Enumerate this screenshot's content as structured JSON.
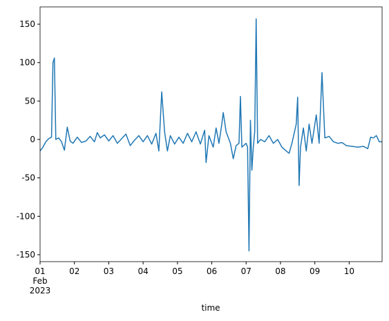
{
  "chart_data": {
    "type": "line",
    "xlabel": "time",
    "x": [
      "2023-02-01T00:00",
      "2023-02-01T02:00",
      "2023-02-01T04:00",
      "2023-02-01T06:00",
      "2023-02-01T08:00",
      "2023-02-01T09:00",
      "2023-02-01T10:00",
      "2023-02-01T11:00",
      "2023-02-01T13:00",
      "2023-02-01T15:00",
      "2023-02-01T17:00",
      "2023-02-01T19:00",
      "2023-02-01T21:00",
      "2023-02-01T23:00",
      "2023-02-02T02:00",
      "2023-02-02T05:00",
      "2023-02-02T08:00",
      "2023-02-02T11:00",
      "2023-02-02T14:00",
      "2023-02-02T16:00",
      "2023-02-02T18:00",
      "2023-02-02T21:00",
      "2023-02-03T00:00",
      "2023-02-03T03:00",
      "2023-02-03T06:00",
      "2023-02-03T09:00",
      "2023-02-03T12:00",
      "2023-02-03T15:00",
      "2023-02-03T18:00",
      "2023-02-03T21:00",
      "2023-02-04T00:00",
      "2023-02-04T03:00",
      "2023-02-04T06:00",
      "2023-02-04T09:00",
      "2023-02-04T11:00",
      "2023-02-04T13:00",
      "2023-02-04T15:00",
      "2023-02-04T17:00",
      "2023-02-04T19:00",
      "2023-02-04T22:00",
      "2023-02-05T01:00",
      "2023-02-05T04:00",
      "2023-02-05T07:00",
      "2023-02-05T10:00",
      "2023-02-05T13:00",
      "2023-02-05T16:00",
      "2023-02-05T19:00",
      "2023-02-05T20:00",
      "2023-02-05T22:00",
      "2023-02-06T01:00",
      "2023-02-06T03:00",
      "2023-02-06T05:00",
      "2023-02-06T07:00",
      "2023-02-06T08:00",
      "2023-02-06T10:00",
      "2023-02-06T13:00",
      "2023-02-06T15:00",
      "2023-02-06T17:00",
      "2023-02-06T19:00",
      "2023-02-06T20:00",
      "2023-02-06T21:00",
      "2023-02-07T00:00",
      "2023-02-07T01:00",
      "2023-02-07T02:00",
      "2023-02-07T03:00",
      "2023-02-07T04:00",
      "2023-02-07T05:00",
      "2023-02-07T06:00",
      "2023-02-07T07:00",
      "2023-02-07T08:00",
      "2023-02-07T10:00",
      "2023-02-07T13:00",
      "2023-02-07T16:00",
      "2023-02-07T19:00",
      "2023-02-07T22:00",
      "2023-02-08T01:00",
      "2023-02-08T04:00",
      "2023-02-08T06:00",
      "2023-02-08T08:00",
      "2023-02-08T11:00",
      "2023-02-08T12:00",
      "2023-02-08T13:00",
      "2023-02-08T14:00",
      "2023-02-08T16:00",
      "2023-02-08T18:00",
      "2023-02-08T20:00",
      "2023-02-08T22:00",
      "2023-02-09T01:00",
      "2023-02-09T03:00",
      "2023-02-09T05:00",
      "2023-02-09T07:00",
      "2023-02-09T10:00",
      "2023-02-09T13:00",
      "2023-02-09T16:00",
      "2023-02-09T19:00",
      "2023-02-09T22:00",
      "2023-02-10T02:00",
      "2023-02-10T06:00",
      "2023-02-10T10:00",
      "2023-02-10T13:00",
      "2023-02-10T15:00",
      "2023-02-10T17:00",
      "2023-02-10T19:00",
      "2023-02-10T21:00",
      "2023-02-10T23:00"
    ],
    "values": [
      -15,
      -10,
      -3,
      1,
      3,
      100,
      106,
      0,
      2,
      -3,
      -14,
      16,
      -2,
      -5,
      3,
      -4,
      -2,
      4,
      -3,
      9,
      2,
      6,
      -2,
      5,
      -5,
      1,
      7,
      -8,
      -1,
      5,
      -3,
      5,
      -6,
      8,
      -15,
      62,
      10,
      -15,
      5,
      -6,
      3,
      -5,
      8,
      -3,
      10,
      -6,
      12,
      -30,
      5,
      -10,
      15,
      -5,
      20,
      35,
      10,
      -5,
      -25,
      -8,
      -5,
      56,
      -10,
      -5,
      -10,
      -145,
      25,
      -40,
      -10,
      10,
      157,
      -5,
      0,
      -3,
      5,
      -5,
      0,
      -10,
      -15,
      -18,
      -5,
      20,
      55,
      -60,
      -10,
      15,
      -15,
      20,
      -5,
      32,
      -5,
      87,
      2,
      4,
      -3,
      -5,
      -4,
      -8,
      -9,
      -10,
      -9,
      -12,
      3,
      2,
      5,
      -3,
      -3
    ],
    "color": "#1f77b4",
    "xlim": [
      "2023-02-01T00:00",
      "2023-02-10T23:00"
    ],
    "xticks": [
      {
        "value": "2023-02-01T00:00",
        "label": "01"
      },
      {
        "value": "2023-02-02T00:00",
        "label": "02"
      },
      {
        "value": "2023-02-03T00:00",
        "label": "03"
      },
      {
        "value": "2023-02-04T00:00",
        "label": "04"
      },
      {
        "value": "2023-02-05T00:00",
        "label": "05"
      },
      {
        "value": "2023-02-06T00:00",
        "label": "06"
      },
      {
        "value": "2023-02-07T00:00",
        "label": "07"
      },
      {
        "value": "2023-02-08T00:00",
        "label": "08"
      },
      {
        "value": "2023-02-09T00:00",
        "label": "09"
      },
      {
        "value": "2023-02-10T00:00",
        "label": "10"
      }
    ],
    "xtick_offset": [
      "Feb",
      "2023"
    ],
    "ylim": [
      -159,
      172.5
    ],
    "yticks": [
      -150,
      -100,
      -50,
      0,
      50,
      100,
      150
    ],
    "grid": false
  }
}
